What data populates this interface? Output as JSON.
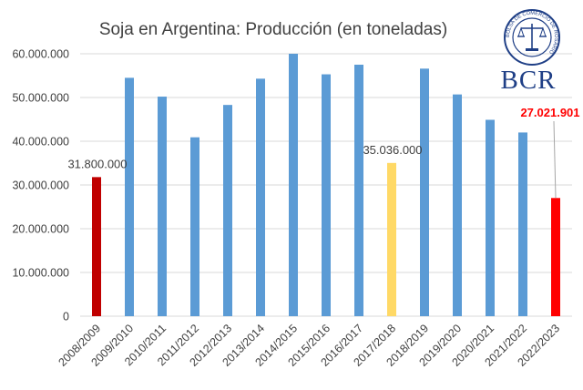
{
  "logo": {
    "text": "BCR",
    "seal_text": "BOLSA DE COMERCIO DE ROSARIO",
    "color": "#1f3f86"
  },
  "chart_data": {
    "type": "bar",
    "title": "Soja en Argentina: Producción (en toneladas)",
    "xlabel": "",
    "ylabel": "",
    "ylim": [
      0,
      60000000
    ],
    "yticks": [
      0,
      10000000,
      20000000,
      30000000,
      40000000,
      50000000,
      60000000
    ],
    "ytick_labels": [
      "0",
      "10.000.000",
      "20.000.000",
      "30.000.000",
      "40.000.000",
      "50.000.000",
      "60.000.000"
    ],
    "grid": true,
    "legend": "none",
    "categories": [
      "2008/2009",
      "2009/2010",
      "2010/2011",
      "2011/2012",
      "2012/2013",
      "2013/2014",
      "2014/2015",
      "2015/2016",
      "2016/2017",
      "2017/2018",
      "2018/2019",
      "2019/2020",
      "2020/2021",
      "2021/2022",
      "2022/2023"
    ],
    "values": [
      31800000,
      54500000,
      50200000,
      40900000,
      48300000,
      54300000,
      60000000,
      55300000,
      57500000,
      35036000,
      56600000,
      50700000,
      44900000,
      42000000,
      27021901
    ],
    "colors": [
      "#c00000",
      "#5b9bd5",
      "#5b9bd5",
      "#5b9bd5",
      "#5b9bd5",
      "#5b9bd5",
      "#5b9bd5",
      "#5b9bd5",
      "#5b9bd5",
      "#ffd966",
      "#5b9bd5",
      "#5b9bd5",
      "#5b9bd5",
      "#5b9bd5",
      "#ff0000"
    ],
    "data_labels": [
      {
        "index": 0,
        "text": "31.800.000",
        "color": "#404040",
        "bold": false
      },
      {
        "index": 9,
        "text": "35.036.000",
        "color": "#404040",
        "bold": false
      },
      {
        "index": 14,
        "text": "27.021.901",
        "color": "#ff0000",
        "bold": true
      }
    ]
  }
}
